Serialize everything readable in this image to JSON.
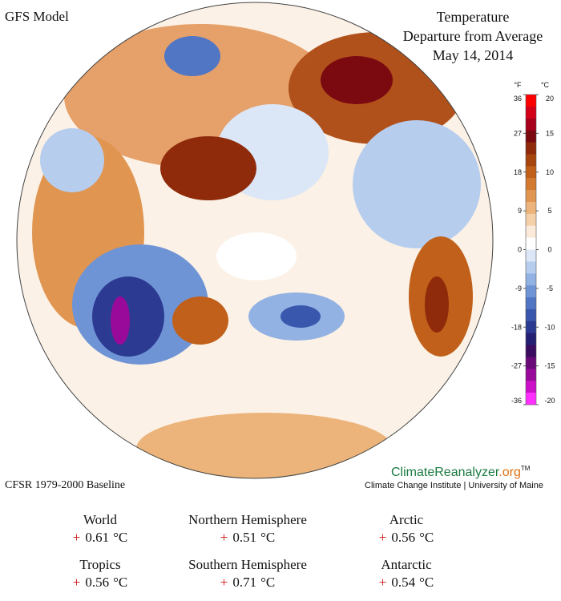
{
  "header": {
    "model": "GFS Model",
    "title": [
      "Temperature",
      "Departure from Average",
      "May 14, 2014"
    ]
  },
  "colorbar": {
    "f_unit": "°F",
    "c_unit": "°C",
    "flim": [
      -36,
      36
    ],
    "clim": [
      -20,
      20
    ],
    "f_ticks": [
      36,
      27,
      18,
      9,
      0,
      -9,
      -18,
      -27,
      -36
    ],
    "c_ticks": [
      20,
      15,
      10,
      5,
      0,
      -5,
      -10,
      -15,
      -20
    ],
    "colors": [
      "#ff0000",
      "#d4001a",
      "#a8001c",
      "#7a0a10",
      "#8f2a0a",
      "#a8450f",
      "#c0601a",
      "#d27a30",
      "#e09550",
      "#ecb47a",
      "#f4d0a8",
      "#fbeada",
      "#ffffff",
      "#dbe6f6",
      "#b7cdee",
      "#92b2e3",
      "#6f94d6",
      "#5176c4",
      "#3a57ae",
      "#2c3a92",
      "#231f72",
      "#3a0d60",
      "#6a0a78",
      "#9a0a9a",
      "#cc10c8",
      "#ff30ff"
    ]
  },
  "baseline": "CFSR 1979-2000 Baseline",
  "credit": {
    "brand": "ClimateReanalyzer",
    "suffix": ".org",
    "tm": "TM",
    "line": "Climate Change Institute | University of Maine"
  },
  "stats": [
    {
      "region": "World",
      "sign": "+",
      "value": 0.61,
      "unit": "°C"
    },
    {
      "region": "Northern Hemisphere",
      "sign": "+",
      "value": 0.51,
      "unit": "°C"
    },
    {
      "region": "Arctic",
      "sign": "+",
      "value": 0.56,
      "unit": "°C"
    },
    {
      "region": "Tropics",
      "sign": "+",
      "value": 0.56,
      "unit": "°C"
    },
    {
      "region": "Southern Hemisphere",
      "sign": "+",
      "value": 0.71,
      "unit": "°C"
    },
    {
      "region": "Antarctic",
      "sign": "+",
      "value": 0.54,
      "unit": "°C"
    }
  ]
}
